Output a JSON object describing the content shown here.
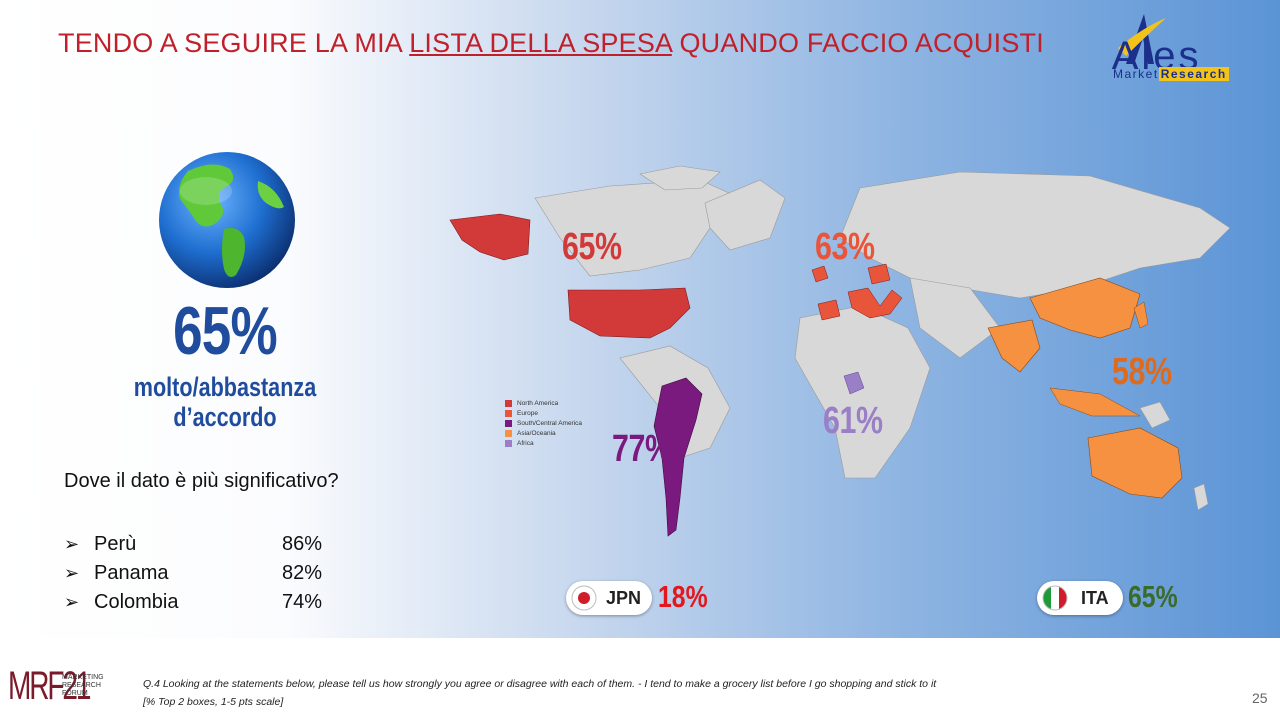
{
  "title": {
    "prefix": "TENDO A SEGUIRE LA MIA ",
    "underlined": "LISTA DELLA SPESA",
    "suffix": " QUANDO FACCIO ACQUISTI"
  },
  "logo": {
    "name": "Ales",
    "sub_1": "Market",
    "sub_2": "Research"
  },
  "summary": {
    "value": "65%",
    "line_1": "molto/abbastanza",
    "line_2": "d’accordo"
  },
  "significance": {
    "question": "Dove il dato è più significativo?",
    "items": [
      {
        "country": "Perù",
        "value": "86%"
      },
      {
        "country": "Panama",
        "value": "82%"
      },
      {
        "country": "Colombia",
        "value": "74%"
      }
    ]
  },
  "map": {
    "legend": [
      {
        "label": "North America",
        "color": "#d23a3a"
      },
      {
        "label": "Europe",
        "color": "#e8553a"
      },
      {
        "label": "South/Central America",
        "color": "#7b1a7e"
      },
      {
        "label": "Asia/Oceania",
        "color": "#f59140"
      },
      {
        "label": "Africa",
        "color": "#9a7fc7"
      }
    ],
    "regions": {
      "north_america": {
        "value": "65%",
        "color": "#d23a3a"
      },
      "europe": {
        "value": "63%",
        "color": "#e8553a"
      },
      "south_central_america": {
        "value": "77%",
        "color": "#7b1a7e"
      },
      "africa": {
        "value": "61%",
        "color": "#9a7fc7"
      },
      "asia_oceania": {
        "value": "58%",
        "color": "#e06a1c"
      }
    }
  },
  "comparisons": [
    {
      "code": "JPN",
      "value": "18%",
      "color": "#e3171d"
    },
    {
      "code": "ITA",
      "value": "65%",
      "color": "#3b6b2a"
    }
  ],
  "footer": {
    "mrf_logo": "MRF21",
    "mrf_sub": "MARKETING RESEARCH FORUM",
    "note_1": "Q.4 Looking at the statements  below, please tell us how strongly you agree or disagree with each of them. - I tend to make a grocery list before I go shopping and stick to it",
    "note_2": "[% Top 2 boxes, 1-5 pts scale]",
    "page": "25"
  }
}
